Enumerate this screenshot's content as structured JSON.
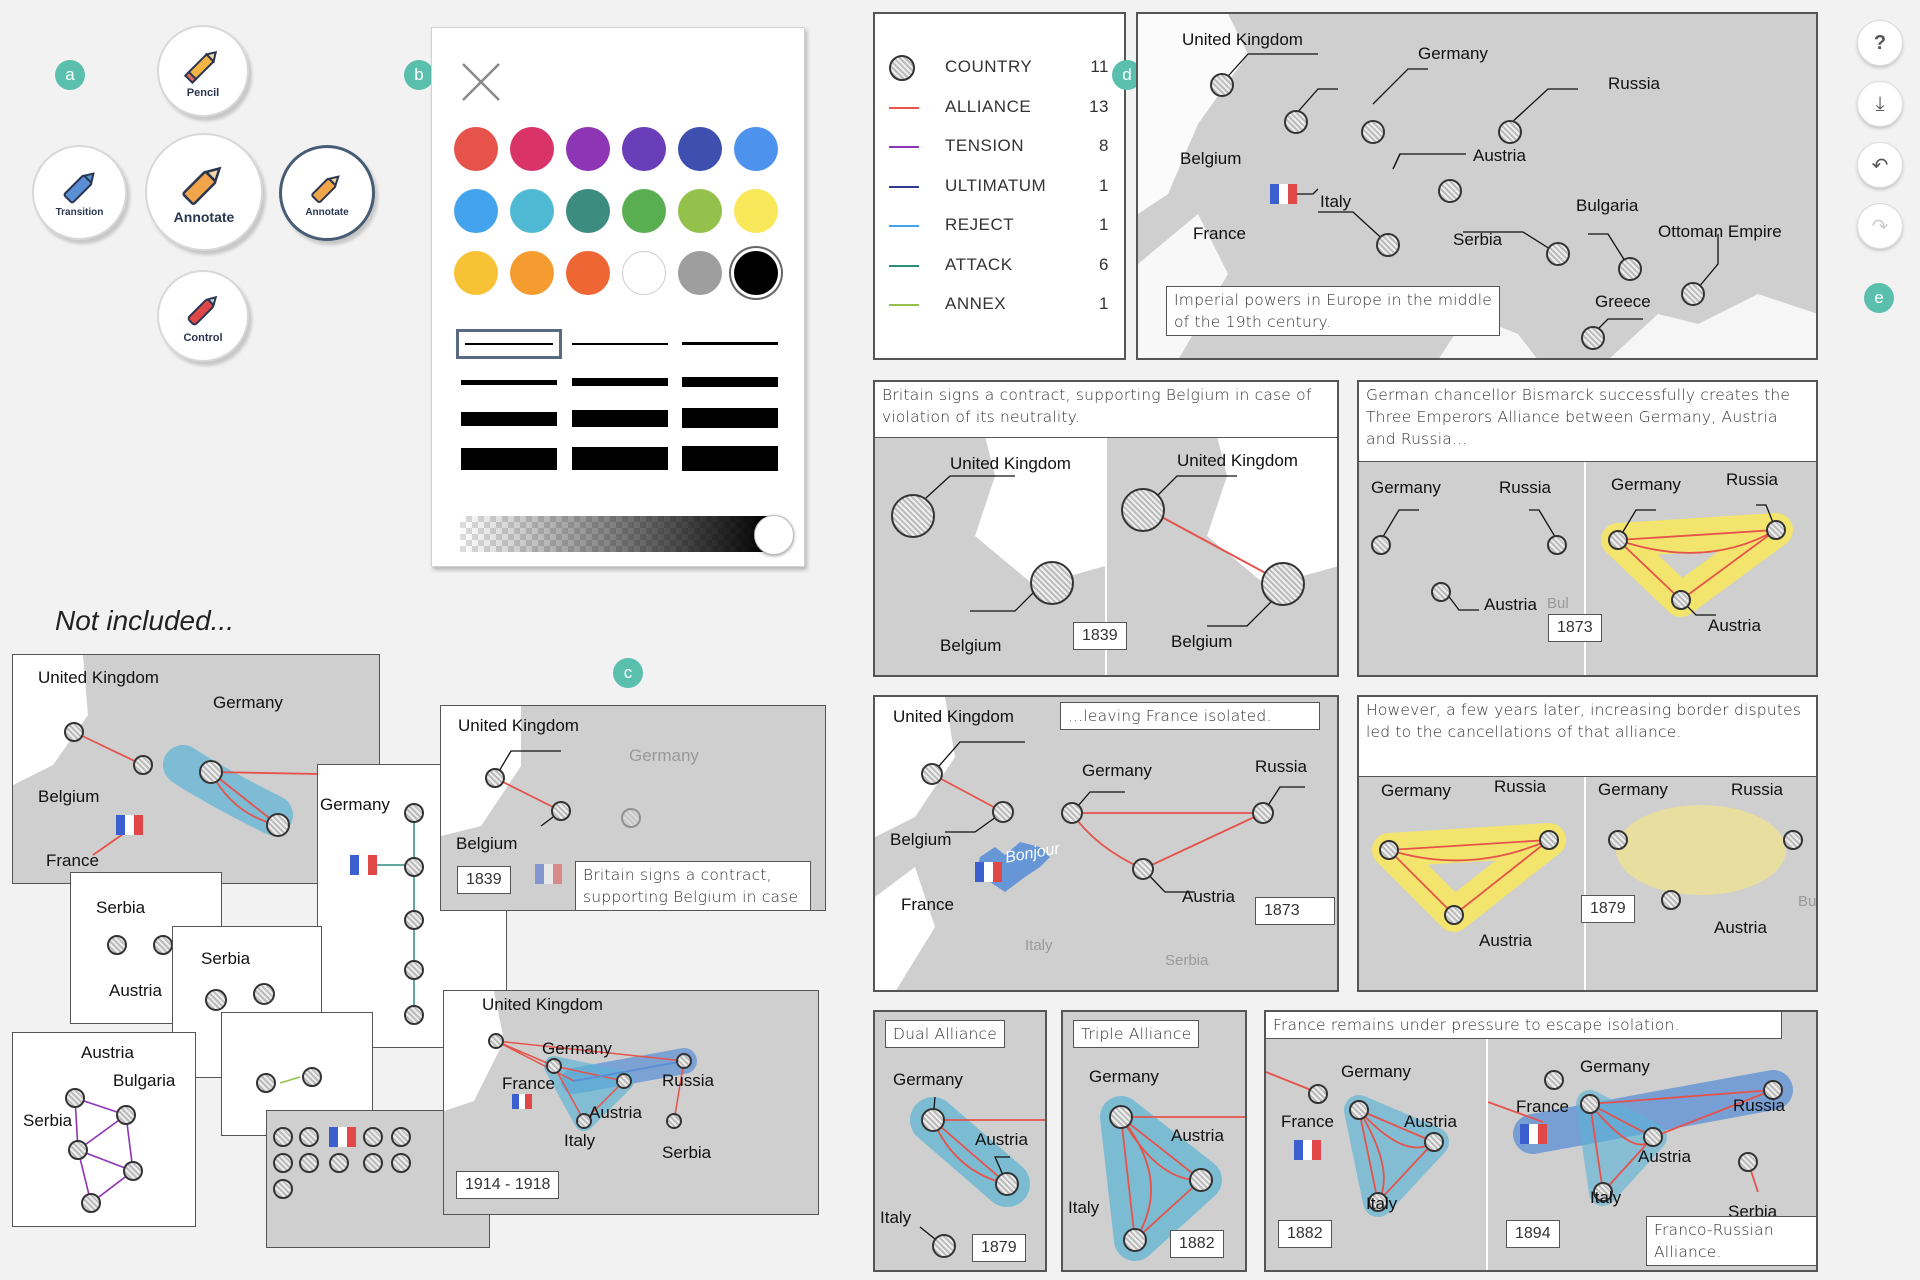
{
  "badges": {
    "a": "a",
    "b": "b",
    "c": "c",
    "d": "d",
    "e": "e"
  },
  "tools": {
    "pencil": "Pencil",
    "transition": "Transition",
    "annotate_center": "Annotate",
    "annotate_active": "Annotate",
    "control": "Control"
  },
  "palette": {
    "colors": [
      "#e5534b",
      "#d9336a",
      "#8e35b6",
      "#6a3db9",
      "#3f4faf",
      "#4d93ee",
      "#43a3ec",
      "#4fb8d2",
      "#3c8c80",
      "#5aae52",
      "#94c04c",
      "#f8e85a",
      "#f8c237",
      "#f59c31",
      "#ee6633",
      "#ffffff",
      "#9e9e9e",
      "#000000"
    ]
  },
  "legend": {
    "items": [
      {
        "label": "COUNTRY",
        "count": "11",
        "color": "#999999"
      },
      {
        "label": "ALLIANCE",
        "count": "13",
        "color": "#e5534b"
      },
      {
        "label": "TENSION",
        "count": "8",
        "color": "#8e35b6"
      },
      {
        "label": "ULTIMATUM",
        "count": "1",
        "color": "#2f3b8f"
      },
      {
        "label": "REJECT",
        "count": "1",
        "color": "#43a3ec"
      },
      {
        "label": "ATTACK",
        "count": "6",
        "color": "#2b8c80"
      },
      {
        "label": "ANNEX",
        "count": "1",
        "color": "#94c04c"
      }
    ]
  },
  "overview": {
    "labels": {
      "uk": "United Kingdom",
      "germany": "Germany",
      "russia": "Russia",
      "belgium": "Belgium",
      "austria": "Austria",
      "italy": "Italy",
      "france": "France",
      "bulgaria": "Bulgaria",
      "serbia": "Serbia",
      "ottoman": "Ottoman Empire",
      "greece": "Greece"
    },
    "caption": "Imperial powers in Europe in the middle of the 19th century."
  },
  "p2": {
    "caption": "Britain signs a contract, supporting Belgium in case of violation of its neutrality.",
    "uk": "United Kingdom",
    "belgium": "Belgium",
    "year": "1839"
  },
  "p3": {
    "caption": "German chancellor Bismarck successfully creates the Three Emperors Alliance between Germany, Austria and Russia...",
    "germany": "Germany",
    "russia": "Russia",
    "austria": "Austria",
    "year": "1873",
    "bul": "Bul"
  },
  "p4": {
    "caption": "...leaving France isolated.",
    "uk": "United Kingdom",
    "germany": "Germany",
    "russia": "Russia",
    "belgium": "Belgium",
    "austria": "Austria",
    "france": "France",
    "italy": "Italy",
    "serbia": "Serbia",
    "year": "1873",
    "bonjour": "Bonjour"
  },
  "p5": {
    "caption": "However, a few years later, increasing border disputes led to the cancellations of that alliance.",
    "germany": "Germany",
    "russia": "Russia",
    "austria": "Austria",
    "year": "1879",
    "bulg": "Bulg"
  },
  "p6": {
    "caption": "Dual Alliance",
    "germany": "Germany",
    "austria": "Austria",
    "italy": "Italy",
    "year": "1879"
  },
  "p7": {
    "caption": "Triple Alliance",
    "germany": "Germany",
    "austria": "Austria",
    "italy": "Italy",
    "year": "1882"
  },
  "p8": {
    "caption": "France remains under pressure to escape isolation.",
    "germany": "Germany",
    "austria": "Austria",
    "france": "France",
    "italy": "Italy",
    "russia": "Russia",
    "serbia": "Serbia",
    "year1": "1882",
    "year2": "1894",
    "sub": "Franco-Russian Alliance."
  },
  "not_included": {
    "title": "Not included...",
    "uk": "United Kingdom",
    "germany": "Germany",
    "belgium": "Belgium",
    "france": "France",
    "serbia": "Serbia",
    "austria": "Austria",
    "bulgaria": "Bulgaria",
    "germany2": "Germany"
  },
  "c_panels": {
    "uk": "United Kingdom",
    "germany_faint": "Germany",
    "belgium": "Belgium",
    "year": "1839",
    "caption": "Britain signs a contract, supporting Belgium in case of violation of its neutrality.",
    "uk2": "United Kingdom",
    "germany2": "Germany",
    "france2": "France",
    "russia2": "Russia",
    "austria2": "Austria",
    "italy2": "Italy",
    "serbia2": "Serbia",
    "year2": "1914 - 1918"
  },
  "side_buttons": {
    "help": "?",
    "download": "⤓",
    "undo": "↶",
    "redo": "↷"
  }
}
